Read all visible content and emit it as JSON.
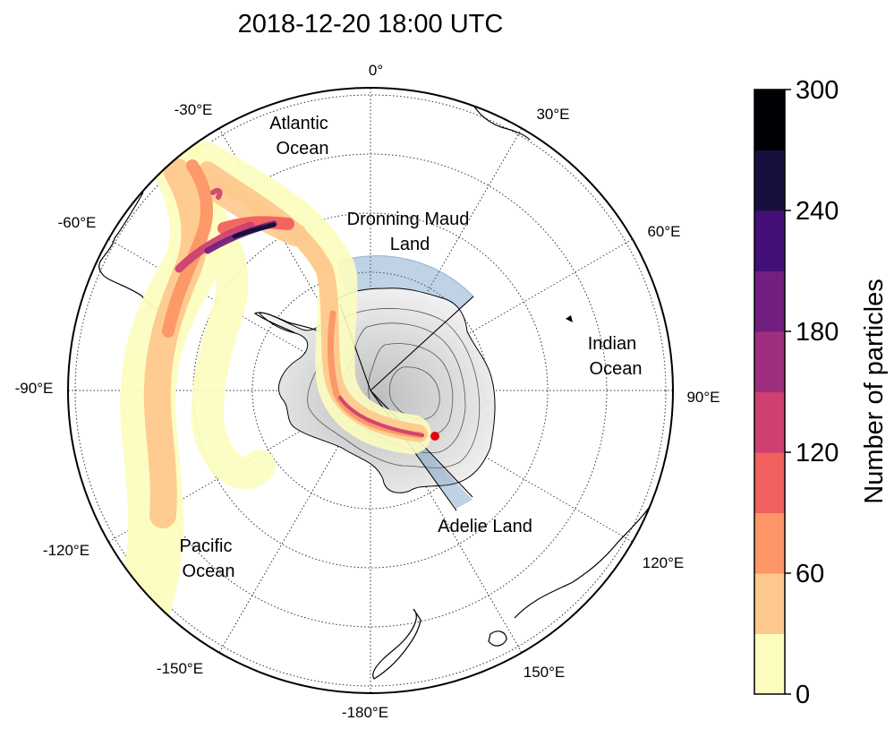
{
  "title": "2018-12-20 18:00 UTC",
  "longitude_labels": [
    {
      "id": "0",
      "text": "0°"
    },
    {
      "id": "30",
      "text": "30°E"
    },
    {
      "id": "60",
      "text": "60°E"
    },
    {
      "id": "90",
      "text": "90°E"
    },
    {
      "id": "120",
      "text": "120°E"
    },
    {
      "id": "150",
      "text": "150°E"
    },
    {
      "id": "180",
      "text": "-180°E"
    },
    {
      "id": "m150",
      "text": "-150°E"
    },
    {
      "id": "m120",
      "text": "-120°E"
    },
    {
      "id": "m90",
      "text": "-90°E"
    },
    {
      "id": "m60",
      "text": "-60°E"
    },
    {
      "id": "m30",
      "text": "-30°E"
    }
  ],
  "regions": {
    "atlantic_1": "Atlantic",
    "atlantic_2": "Ocean",
    "dronning_1": "Dronning Maud",
    "dronning_2": "Land",
    "indian_1": "Indian",
    "indian_2": "Ocean",
    "pacific_1": "Pacific",
    "pacific_2": "Ocean",
    "adelie": "Adelie Land"
  },
  "colorbar": {
    "label": "Number of particles",
    "min": 0,
    "max": 300,
    "step": 30,
    "ticks": [
      "0",
      "60",
      "120",
      "180",
      "240",
      "300"
    ],
    "colors": [
      "#fcfdbf",
      "#fec98d",
      "#fd9567",
      "#f1605d",
      "#cd4071",
      "#9e2f7f",
      "#721f81",
      "#440f76",
      "#180f3d",
      "#000004"
    ]
  },
  "colors": {
    "source_marker": "#e8000b",
    "sector_fill": "#4a7fb5"
  }
}
